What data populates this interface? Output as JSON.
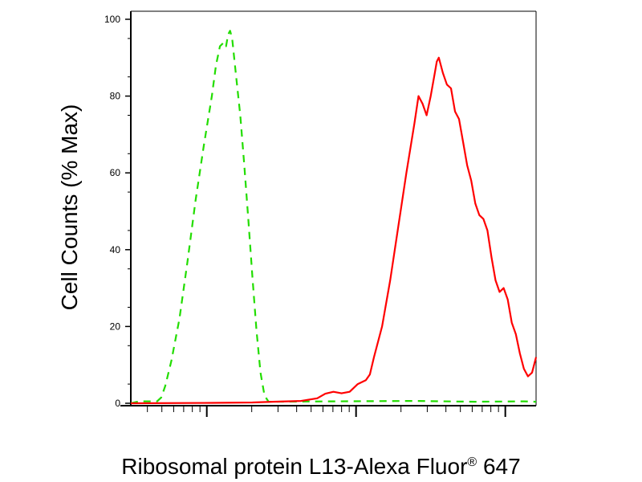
{
  "chart_data": {
    "type": "line",
    "title": "",
    "xlabel": {
      "main": "Ribosomal protein L13-Alexa Fluor",
      "superscript": "®",
      "suffix": " 647"
    },
    "ylabel": "Cell Counts (% Max)",
    "xscale": "log",
    "ylim": [
      0,
      100
    ],
    "yticks": [
      "0",
      "20",
      "40",
      "60",
      "80",
      "100"
    ],
    "grid": false,
    "legend": "none",
    "series": [
      {
        "line_color": "#22dd00",
        "line_style": "dashed",
        "points": [
          [
            0.0,
            0
          ],
          [
            0.02,
            0.5
          ],
          [
            0.05,
            0.5
          ],
          [
            0.065,
            0.5
          ],
          [
            0.075,
            1.5
          ],
          [
            0.085,
            4.5
          ],
          [
            0.1,
            11
          ],
          [
            0.12,
            22
          ],
          [
            0.14,
            37
          ],
          [
            0.16,
            53
          ],
          [
            0.18,
            67
          ],
          [
            0.2,
            80
          ],
          [
            0.21,
            88
          ],
          [
            0.22,
            93
          ],
          [
            0.23,
            94
          ],
          [
            0.235,
            93
          ],
          [
            0.24,
            96
          ],
          [
            0.245,
            97
          ],
          [
            0.25,
            95
          ],
          [
            0.26,
            85
          ],
          [
            0.27,
            75
          ],
          [
            0.28,
            62
          ],
          [
            0.29,
            48
          ],
          [
            0.3,
            33
          ],
          [
            0.31,
            19
          ],
          [
            0.32,
            8
          ],
          [
            0.33,
            2
          ],
          [
            0.34,
            0.4
          ],
          [
            0.5,
            0.5
          ],
          [
            0.7,
            0.6
          ],
          [
            0.85,
            0.4
          ],
          [
            0.97,
            0.5
          ],
          [
            1.0,
            0.4
          ]
        ]
      },
      {
        "line_color": "#ff0000",
        "line_style": "solid",
        "points": [
          [
            0.0,
            0
          ],
          [
            0.2,
            0.1
          ],
          [
            0.3,
            0.2
          ],
          [
            0.35,
            0.4
          ],
          [
            0.42,
            0.6
          ],
          [
            0.46,
            1.3
          ],
          [
            0.48,
            2.5
          ],
          [
            0.5,
            3
          ],
          [
            0.52,
            2.6
          ],
          [
            0.54,
            3
          ],
          [
            0.56,
            5
          ],
          [
            0.58,
            6
          ],
          [
            0.59,
            7.5
          ],
          [
            0.6,
            12
          ],
          [
            0.62,
            20
          ],
          [
            0.64,
            32
          ],
          [
            0.66,
            46
          ],
          [
            0.68,
            60
          ],
          [
            0.7,
            73
          ],
          [
            0.71,
            80
          ],
          [
            0.72,
            78
          ],
          [
            0.73,
            75
          ],
          [
            0.74,
            80
          ],
          [
            0.75,
            86
          ],
          [
            0.755,
            89
          ],
          [
            0.76,
            90
          ],
          [
            0.77,
            86
          ],
          [
            0.78,
            83
          ],
          [
            0.79,
            82
          ],
          [
            0.8,
            76
          ],
          [
            0.81,
            74
          ],
          [
            0.82,
            68
          ],
          [
            0.83,
            62
          ],
          [
            0.84,
            58
          ],
          [
            0.85,
            52
          ],
          [
            0.86,
            49
          ],
          [
            0.87,
            48
          ],
          [
            0.88,
            45
          ],
          [
            0.89,
            38
          ],
          [
            0.9,
            32
          ],
          [
            0.91,
            29
          ],
          [
            0.92,
            30
          ],
          [
            0.93,
            27
          ],
          [
            0.94,
            21
          ],
          [
            0.95,
            18
          ],
          [
            0.96,
            13
          ],
          [
            0.97,
            9
          ],
          [
            0.98,
            7
          ],
          [
            0.99,
            8
          ],
          [
            1.0,
            12
          ]
        ]
      }
    ]
  }
}
